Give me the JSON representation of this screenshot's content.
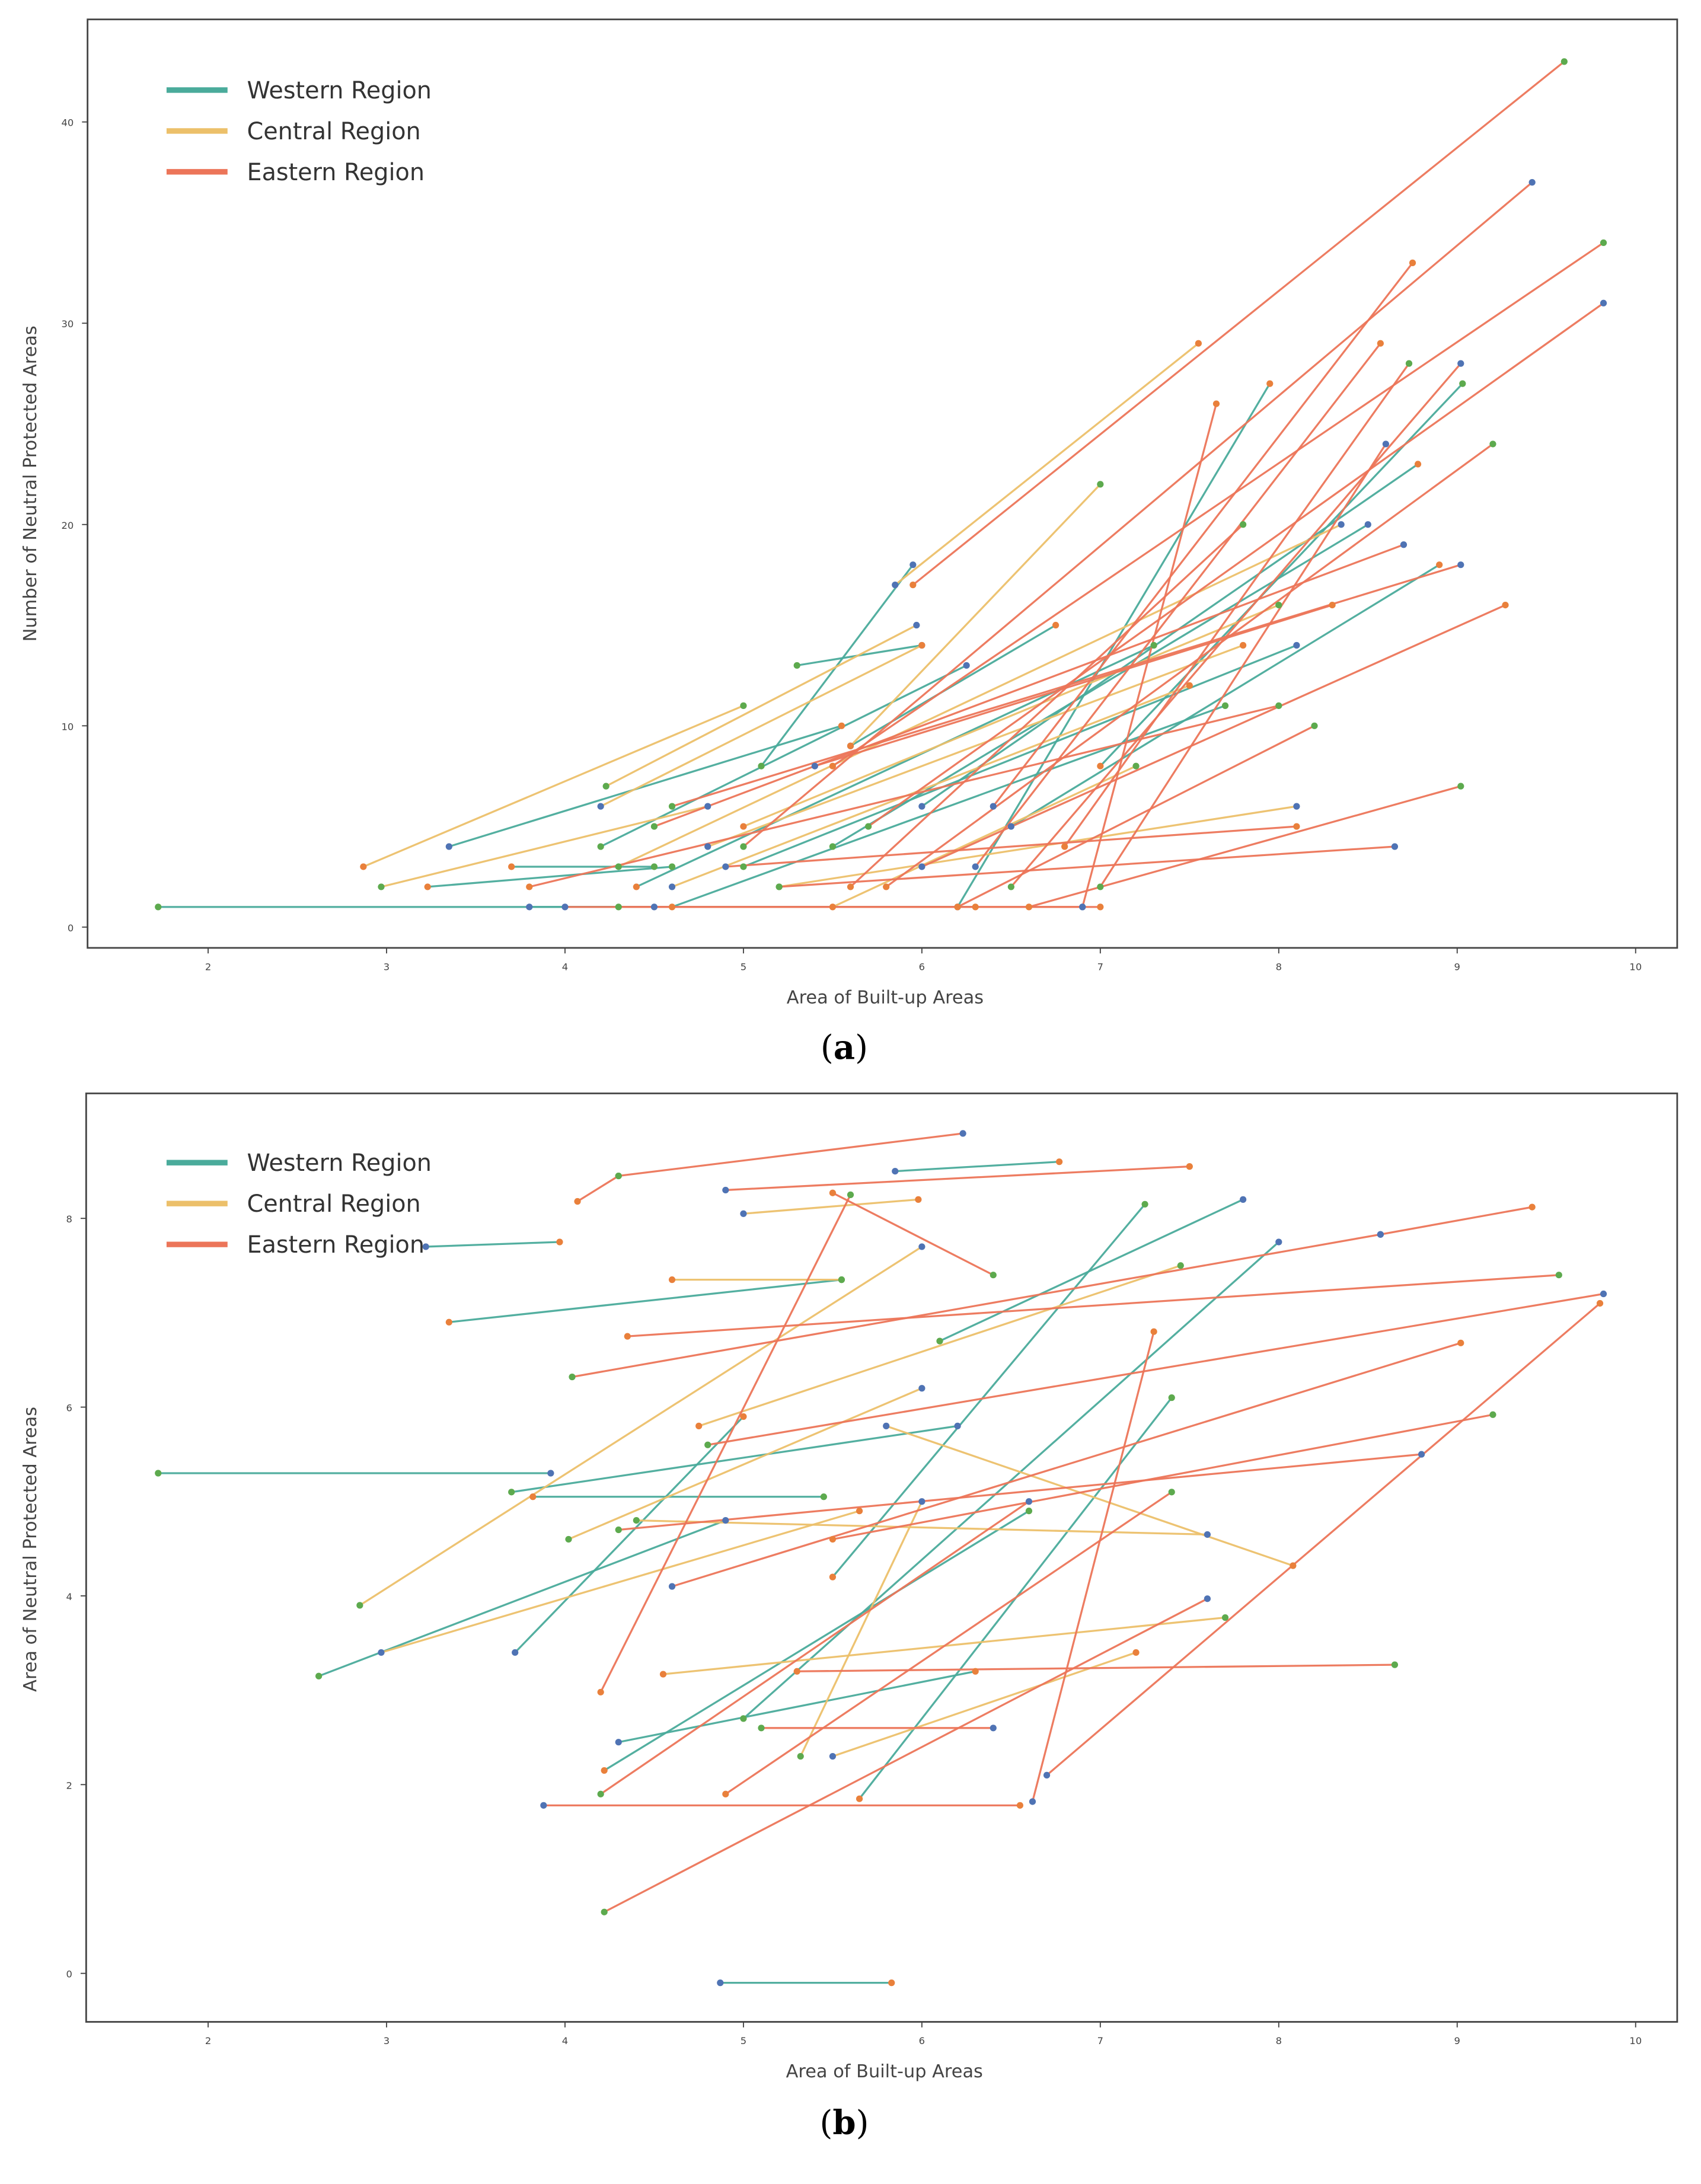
{
  "colors": {
    "western": "#4aab9b",
    "central": "#ecc06a",
    "eastern": "#ec7559",
    "dot_blue": "#4f73b4",
    "dot_green": "#5daa4e",
    "dot_orange": "#e9803b"
  },
  "chart_data": [
    {
      "type": "line",
      "panel_label": "a",
      "xlabel": "Area of Built-up Areas",
      "ylabel": "Number of Neutral Protected Areas",
      "xlim": [
        1.1,
        10.0
      ],
      "ylim": [
        -1,
        43
      ],
      "xticks": [
        "2",
        "3",
        "4",
        "5",
        "6",
        "7",
        "8",
        "9",
        "10"
      ],
      "yticks": [
        "0",
        "10",
        "20",
        "30",
        "40"
      ],
      "legend": {
        "placement": "top-left",
        "entries": [
          "Western Region",
          "Central Region",
          "Eastern Region"
        ]
      },
      "segments": [
        [
          1.72,
          1,
          4.5,
          1,
          0
        ],
        [
          3.35,
          4,
          5.55,
          10,
          0
        ],
        [
          3.23,
          2,
          4.6,
          3,
          0
        ],
        [
          5.1,
          8,
          5.95,
          18,
          0
        ],
        [
          6.2,
          1,
          7.95,
          27,
          0
        ],
        [
          3.7,
          3,
          4.5,
          3,
          0
        ],
        [
          4.2,
          4,
          6.25,
          13,
          0
        ],
        [
          5.6,
          9,
          6.75,
          15,
          0
        ],
        [
          4.4,
          2,
          7.3,
          14,
          0
        ],
        [
          5.5,
          4,
          8.5,
          20,
          0
        ],
        [
          6.0,
          6,
          8.78,
          23,
          0
        ],
        [
          4.6,
          1,
          7.7,
          11,
          0
        ],
        [
          5.0,
          3,
          8.1,
          14,
          0
        ],
        [
          6.5,
          5,
          8.9,
          18,
          0
        ],
        [
          7.0,
          8,
          9.03,
          27,
          0
        ],
        [
          5.3,
          13,
          6.0,
          14,
          0
        ],
        [
          3.8,
          1,
          6.3,
          1,
          0
        ],
        [
          2.87,
          3,
          5.0,
          11,
          1
        ],
        [
          2.97,
          2,
          4.8,
          6,
          1
        ],
        [
          5.85,
          17,
          7.55,
          29,
          1
        ],
        [
          5.6,
          9,
          7.0,
          22,
          1
        ],
        [
          4.23,
          7,
          5.97,
          15,
          1
        ],
        [
          4.2,
          6,
          6.0,
          14,
          1
        ],
        [
          5.0,
          5,
          8.0,
          16,
          1
        ],
        [
          4.3,
          3,
          8.35,
          20,
          1
        ],
        [
          4.6,
          2,
          7.5,
          12,
          1
        ],
        [
          5.5,
          1,
          7.2,
          8,
          1
        ],
        [
          5.2,
          2,
          8.1,
          6,
          1
        ],
        [
          4.8,
          4,
          7.8,
          14,
          1
        ],
        [
          5.95,
          17,
          9.6,
          43,
          2
        ],
        [
          5.0,
          4,
          9.42,
          37,
          2
        ],
        [
          6.4,
          6,
          8.75,
          33,
          2
        ],
        [
          5.5,
          8,
          9.82,
          34,
          2
        ],
        [
          5.7,
          5,
          9.82,
          31,
          2
        ],
        [
          6.3,
          3,
          8.57,
          29,
          2
        ],
        [
          6.8,
          4,
          8.73,
          28,
          2
        ],
        [
          6.5,
          2,
          9.02,
          28,
          2
        ],
        [
          6.9,
          1,
          7.65,
          26,
          2
        ],
        [
          5.8,
          2,
          9.2,
          24,
          2
        ],
        [
          4.6,
          6,
          9.02,
          18,
          2
        ],
        [
          6.0,
          3,
          9.27,
          16,
          2
        ],
        [
          6.6,
          1,
          9.02,
          7,
          2
        ],
        [
          5.2,
          2,
          8.65,
          4,
          2
        ],
        [
          4.9,
          3,
          8.1,
          5,
          2
        ],
        [
          3.8,
          2,
          8.0,
          11,
          2
        ],
        [
          4.5,
          5,
          8.7,
          19,
          2
        ],
        [
          5.4,
          8,
          8.3,
          16,
          2
        ],
        [
          6.2,
          1,
          8.2,
          10,
          2
        ],
        [
          7.0,
          2,
          8.6,
          24,
          2
        ],
        [
          4.0,
          1,
          7.0,
          1,
          2
        ],
        [
          5.6,
          2,
          7.8,
          20,
          2
        ],
        [
          4.3,
          1,
          6.9,
          1,
          2
        ]
      ]
    },
    {
      "type": "line",
      "panel_label": "b",
      "xlabel": "Area of Built-up Areas",
      "ylabel": "Area of Neutral Protected Areas",
      "xlim": [
        1.1,
        10.0
      ],
      "ylim": [
        -0.5,
        9.2
      ],
      "xticks": [
        "2",
        "3",
        "4",
        "5",
        "6",
        "7",
        "8",
        "9",
        "10"
      ],
      "yticks": [
        "0",
        "2",
        "4",
        "6",
        "8"
      ],
      "legend": {
        "placement": "top-left",
        "entries": [
          "Western Region",
          "Central Region",
          "Eastern Region"
        ]
      },
      "segments": [
        [
          1.72,
          5.3,
          3.92,
          5.3,
          0
        ],
        [
          3.22,
          7.7,
          3.97,
          7.75,
          0
        ],
        [
          3.35,
          6.9,
          5.55,
          7.35,
          0
        ],
        [
          2.62,
          3.15,
          4.9,
          4.8,
          0
        ],
        [
          3.72,
          3.4,
          5.0,
          5.9,
          0
        ],
        [
          3.82,
          5.05,
          5.45,
          5.05,
          0
        ],
        [
          3.7,
          5.1,
          6.2,
          5.8,
          0
        ],
        [
          5.85,
          8.5,
          6.77,
          8.6,
          0
        ],
        [
          5.5,
          4.2,
          7.25,
          8.15,
          0
        ],
        [
          6.1,
          6.7,
          7.8,
          8.2,
          0
        ],
        [
          4.3,
          2.45,
          6.3,
          3.2,
          0
        ],
        [
          4.22,
          2.15,
          6.6,
          4.9,
          0
        ],
        [
          5.0,
          2.7,
          8.0,
          7.75,
          0
        ],
        [
          4.87,
          -0.1,
          5.83,
          -0.1,
          0
        ],
        [
          5.65,
          1.85,
          7.4,
          6.1,
          0
        ],
        [
          2.85,
          3.9,
          6.0,
          7.7,
          1
        ],
        [
          5.0,
          8.05,
          5.98,
          8.2,
          1
        ],
        [
          4.6,
          7.35,
          5.55,
          7.35,
          1
        ],
        [
          4.02,
          4.6,
          6.0,
          6.2,
          1
        ],
        [
          2.97,
          3.4,
          5.65,
          4.9,
          1
        ],
        [
          4.55,
          3.17,
          7.7,
          3.77,
          1
        ],
        [
          5.32,
          2.3,
          6.0,
          5.0,
          1
        ],
        [
          5.8,
          5.8,
          8.08,
          4.32,
          1
        ],
        [
          4.75,
          5.8,
          7.45,
          7.5,
          1
        ],
        [
          4.4,
          4.8,
          7.6,
          4.65,
          1
        ],
        [
          5.5,
          2.3,
          7.2,
          3.4,
          1
        ],
        [
          4.07,
          8.18,
          4.3,
          8.45,
          2
        ],
        [
          4.3,
          8.45,
          6.23,
          8.9,
          2
        ],
        [
          4.9,
          8.3,
          7.5,
          8.55,
          2
        ],
        [
          5.5,
          8.27,
          6.4,
          7.4,
          2
        ],
        [
          4.22,
          0.65,
          7.6,
          3.97,
          2
        ],
        [
          3.88,
          1.78,
          6.55,
          1.78,
          2
        ],
        [
          4.2,
          2.98,
          5.6,
          8.25,
          2
        ],
        [
          4.04,
          6.32,
          8.57,
          7.83,
          2
        ],
        [
          8.57,
          7.83,
          9.42,
          8.12,
          2
        ],
        [
          4.35,
          6.75,
          9.57,
          7.4,
          2
        ],
        [
          4.8,
          5.6,
          9.82,
          7.2,
          2
        ],
        [
          4.6,
          4.1,
          9.02,
          6.68,
          2
        ],
        [
          5.3,
          3.2,
          8.65,
          3.27,
          2
        ],
        [
          5.1,
          2.6,
          6.4,
          2.6,
          2
        ],
        [
          6.62,
          1.82,
          7.3,
          6.8,
          2
        ],
        [
          5.5,
          4.6,
          9.2,
          5.92,
          2
        ],
        [
          4.3,
          4.7,
          8.8,
          5.5,
          2
        ],
        [
          6.7,
          2.1,
          9.8,
          7.1,
          2
        ],
        [
          4.9,
          1.9,
          7.4,
          5.1,
          2
        ],
        [
          4.2,
          1.9,
          6.6,
          5.0,
          2
        ]
      ]
    }
  ]
}
